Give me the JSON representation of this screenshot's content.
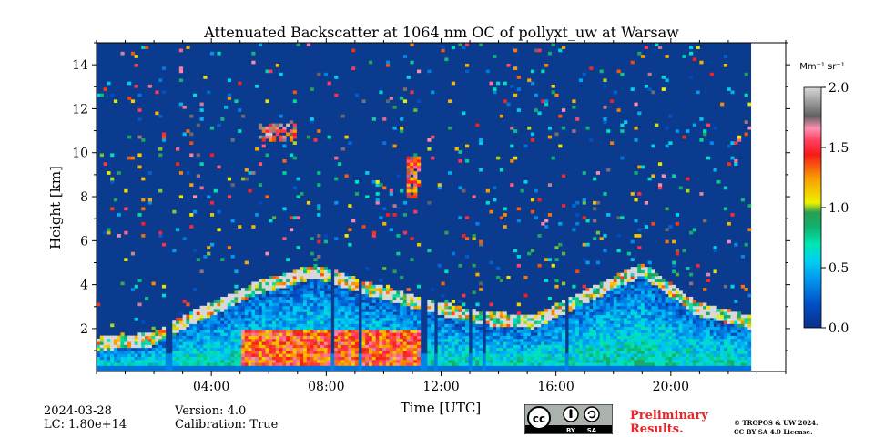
{
  "chart_data": {
    "type": "heatmap",
    "title": "Attenuated Backscatter at 1064 nm OC of pollyxt_uw at Warsaw",
    "xlabel": "Time [UTC]",
    "ylabel": "Height [km]",
    "x_unit": "hours UTC",
    "xlim": [
      0,
      24
    ],
    "x_data_end": 22.8,
    "ylim": [
      0.05,
      15.0
    ],
    "x_ticks": [
      4,
      8,
      12,
      16,
      20
    ],
    "x_tick_labels": [
      "04:00",
      "08:00",
      "12:00",
      "16:00",
      "20:00"
    ],
    "y_ticks": [
      2,
      4,
      6,
      8,
      10,
      12,
      14
    ],
    "y_tick_labels": [
      "2",
      "4",
      "6",
      "8",
      "10",
      "12",
      "14"
    ],
    "colorbar": {
      "label": "Mm⁻¹ sr⁻¹",
      "range": [
        0.0,
        2.0
      ],
      "ticks": [
        0.0,
        0.5,
        1.0,
        1.5,
        2.0
      ],
      "tick_labels": [
        "0.0",
        "0.5",
        "1.0",
        "1.5",
        "2.0"
      ]
    },
    "features": [
      {
        "kind": "boundary_layer",
        "t_start": 0.0,
        "t_end": 22.8,
        "height_top_km": [
          1.0,
          1.2,
          2.5,
          3.6,
          4.3,
          3.5,
          2.8,
          2.2,
          2.0,
          3.2,
          4.4,
          2.6,
          2.0
        ]
      },
      {
        "kind": "high_aerosol",
        "t_start": 5.0,
        "t_end": 11.5,
        "height_top_km": 2.0,
        "value": 1.4
      },
      {
        "kind": "cloud",
        "t_start": 10.8,
        "t_end": 11.5,
        "height_km": [
          8.0,
          9.8
        ],
        "value": 1.8
      },
      {
        "kind": "cloud",
        "t_start": 5.7,
        "t_end": 6.9,
        "height_km": [
          10.5,
          11.3
        ],
        "value": 2.0
      },
      {
        "kind": "rain_columns",
        "times": [
          2.5,
          8.2,
          9.2,
          11.4,
          11.8,
          13.0,
          13.5,
          16.4
        ]
      }
    ]
  },
  "footer": {
    "date": "2024-03-28",
    "lc": "LC: 1.80e+14",
    "version": "Version: 4.0",
    "calibration": "Calibration: True",
    "preliminary_line1": "Preliminary",
    "preliminary_line2": "Results.",
    "copyright_line1": "© TROPOS & UW 2024.",
    "copyright_line2": "CC BY SA 4.0 License.",
    "license_badge": {
      "by": "BY",
      "sa": "SA"
    }
  },
  "colors": {
    "background": "#0b3b8f",
    "text_red": "#e8262a"
  }
}
